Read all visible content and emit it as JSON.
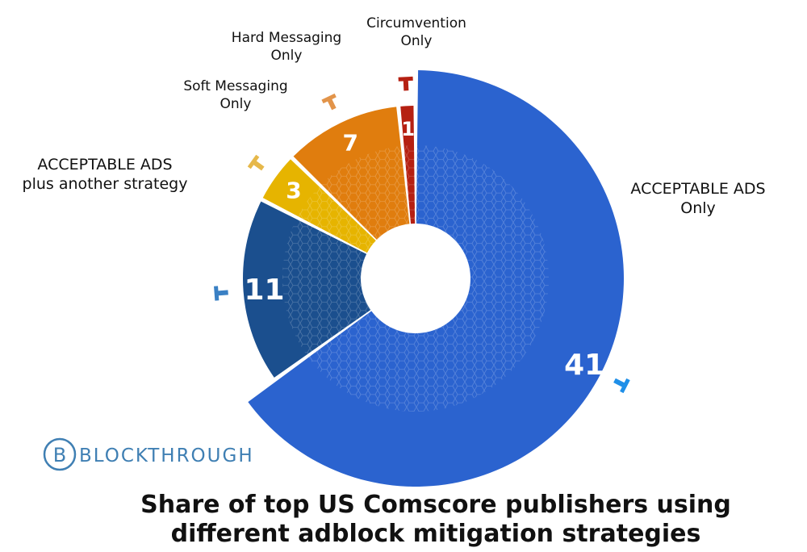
{
  "chart_data": {
    "type": "pie",
    "variant": "donut",
    "categories": [
      "ACCEPTABLE ADS Only",
      "ACCEPTABLE ADS plus another strategy",
      "Soft Messaging Only",
      "Hard Messaging Only",
      "Circumvention Only"
    ],
    "values": [
      41,
      11,
      3,
      7,
      1
    ],
    "value_labels": [
      "41",
      "11",
      "3",
      "7",
      "1"
    ],
    "colors": [
      "#2b63cf",
      "#1b4f8e",
      "#e6b400",
      "#e07d0e",
      "#b52012"
    ],
    "marker_colors": [
      "#1f8fe8",
      "#3a80c4",
      "#e6b84a",
      "#e2944a",
      "#b52012"
    ],
    "callouts": [
      [
        "ACCEPTABLE ADS",
        "Only"
      ],
      [
        "ACCEPTABLE ADS",
        "plus another strategy"
      ],
      [
        "Soft Messaging",
        "Only"
      ],
      [
        "Hard Messaging",
        "Only"
      ],
      [
        "Circumvention",
        "Only"
      ]
    ],
    "title": [
      "Share of top US Comscore publishers using",
      "different adblock mitigation strategies"
    ]
  },
  "brand": {
    "name": "BLOCKTHROUGH",
    "color": "#3f7fb3"
  }
}
